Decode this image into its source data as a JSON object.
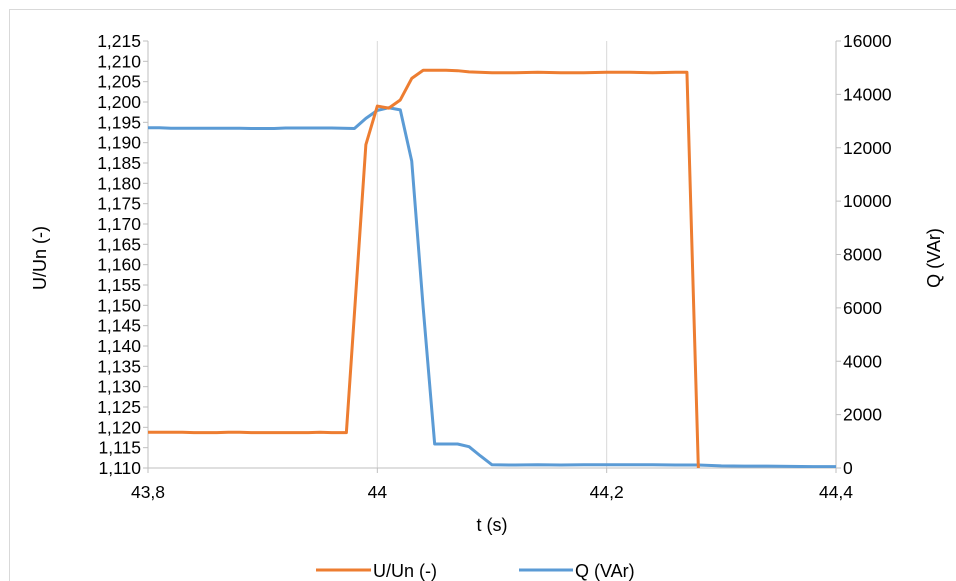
{
  "chart_data": {
    "type": "line",
    "xlabel": "t (s)",
    "ylabel_left": "U/Un (-)",
    "ylabel_right": "Q (VAr)",
    "xlim": [
      43.8,
      44.4
    ],
    "ylim_left": [
      1.11,
      1.215
    ],
    "ylim_right": [
      0,
      16000
    ],
    "x_ticks": [
      "43,8",
      "44",
      "44,2",
      "44,4"
    ],
    "y_ticks_left": [
      "1,110",
      "1,115",
      "1,120",
      "1,125",
      "1,130",
      "1,135",
      "1,140",
      "1,145",
      "1,150",
      "1,155",
      "1,160",
      "1,165",
      "1,170",
      "1,175",
      "1,180",
      "1,185",
      "1,190",
      "1,195",
      "1,200",
      "1,205",
      "1,210",
      "1,215"
    ],
    "y_ticks_right": [
      "0",
      "2000",
      "4000",
      "6000",
      "8000",
      "10000",
      "12000",
      "14000",
      "16000"
    ],
    "grid": "vertical major gridlines",
    "legend": "bottom",
    "colors": {
      "u_un": "#ed7d31",
      "q": "#5b9bd5",
      "grid": "#d9d9d9",
      "axis": "#bfbfbf"
    },
    "series": [
      {
        "name": "U/Un (-)",
        "axis": "left",
        "x": [
          43.8,
          43.81,
          43.82,
          43.83,
          43.84,
          43.85,
          43.86,
          43.87,
          43.88,
          43.89,
          43.9,
          43.91,
          43.92,
          43.93,
          43.94,
          43.95,
          43.96,
          43.97,
          43.973,
          43.99,
          44.0,
          44.01,
          44.02,
          44.03,
          44.04,
          44.05,
          44.06,
          44.07,
          44.08,
          44.1,
          44.12,
          44.14,
          44.16,
          44.18,
          44.2,
          44.22,
          44.24,
          44.26,
          44.27,
          44.28
        ],
        "y": [
          1.1188,
          1.1188,
          1.1188,
          1.1188,
          1.1187,
          1.1187,
          1.1187,
          1.1188,
          1.1188,
          1.1187,
          1.1187,
          1.1187,
          1.1187,
          1.1187,
          1.1187,
          1.1188,
          1.1187,
          1.1187,
          1.1187,
          1.1895,
          1.199,
          1.1985,
          1.2005,
          1.2058,
          1.2078,
          1.2078,
          1.2078,
          1.2077,
          1.2074,
          1.2072,
          1.2072,
          1.2073,
          1.2072,
          1.2072,
          1.2073,
          1.2073,
          1.2072,
          1.2073,
          1.2073,
          1.1095
        ]
      },
      {
        "name": "Q (VAr)",
        "axis": "right",
        "x": [
          43.8,
          43.81,
          43.82,
          43.83,
          43.84,
          43.85,
          43.86,
          43.87,
          43.88,
          43.89,
          43.9,
          43.91,
          43.92,
          43.93,
          43.94,
          43.95,
          43.96,
          43.97,
          43.98,
          43.99,
          44.0,
          44.01,
          44.02,
          44.03,
          44.04,
          44.05,
          44.06,
          44.07,
          44.08,
          44.09,
          44.1,
          44.12,
          44.14,
          44.16,
          44.18,
          44.2,
          44.22,
          44.24,
          44.26,
          44.28,
          44.3,
          44.32,
          44.34,
          44.36,
          44.38,
          44.4
        ],
        "y": [
          12750,
          12750,
          12730,
          12730,
          12730,
          12730,
          12730,
          12730,
          12730,
          12720,
          12720,
          12720,
          12740,
          12740,
          12740,
          12740,
          12740,
          12730,
          12720,
          13100,
          13400,
          13500,
          13420,
          11500,
          6000,
          900,
          900,
          900,
          800,
          450,
          120,
          110,
          120,
          110,
          120,
          120,
          120,
          120,
          110,
          110,
          80,
          70,
          70,
          60,
          50,
          50
        ]
      }
    ]
  }
}
